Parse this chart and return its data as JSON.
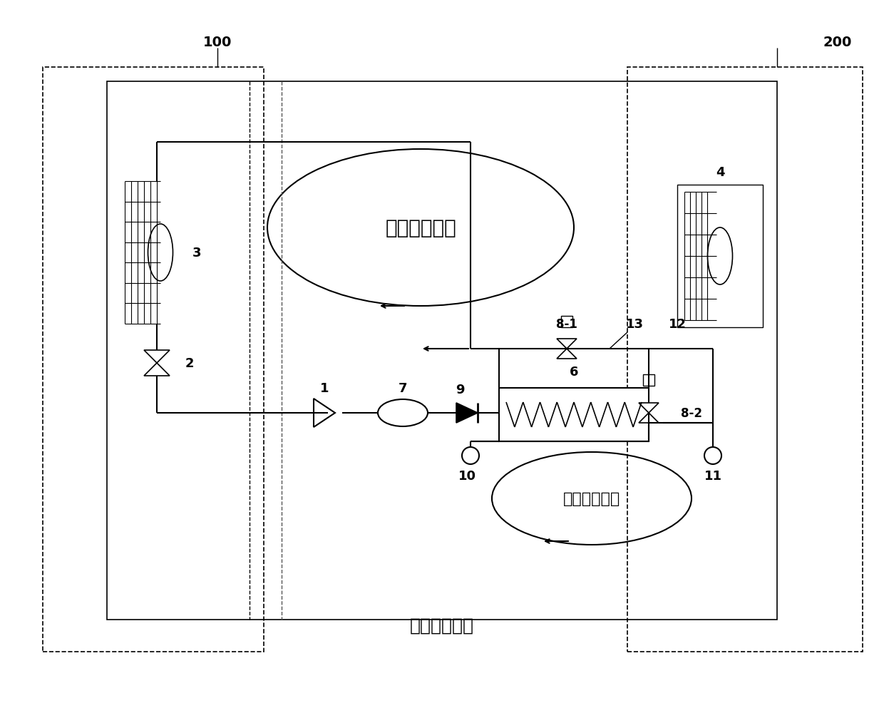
{
  "title": "",
  "bg_color": "#ffffff",
  "line_color": "#000000",
  "box100_label": "100",
  "box200_label": "200",
  "label_1": "1",
  "label_2": "2",
  "label_3": "3",
  "label_4": "4",
  "label_6": "6",
  "label_7": "7",
  "label_8_1": "8-1",
  "label_8_2": "8-2",
  "label_9": "9",
  "label_10": "10",
  "label_11": "11",
  "label_12": "12",
  "label_13": "13",
  "text_heat_pipe": "热管循环系统",
  "text_aux_cool": "辅助冷源系统",
  "text_ext_aux": "外接辅助冷源"
}
